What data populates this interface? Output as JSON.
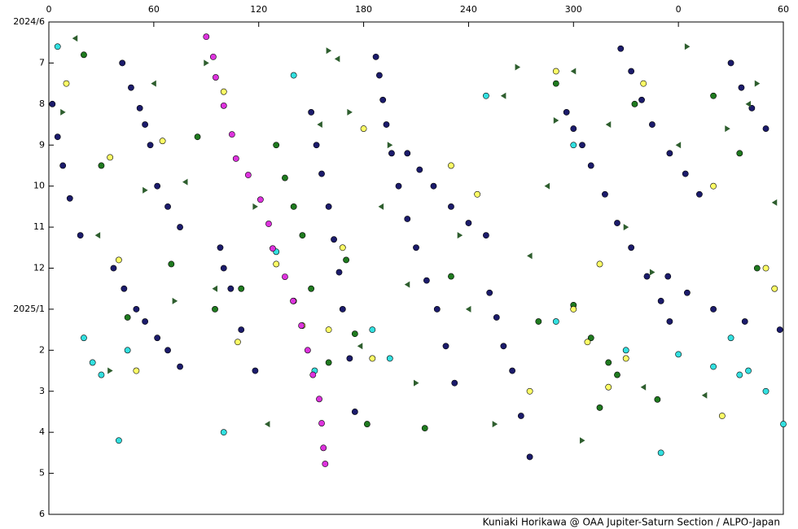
{
  "chart_data": {
    "type": "scatter",
    "credit": "Kuniaki Horikawa @ OAA Jupiter-Saturn Section / ALPO-Japan",
    "xlim": [
      0,
      420
    ],
    "xticks": [
      0,
      60,
      120,
      180,
      240,
      300,
      {
        "value": 360,
        "label": "0"
      },
      {
        "value": 420,
        "label": "60"
      }
    ],
    "ylim": [
      0,
      12
    ],
    "y_inverted": true,
    "yticks": [
      {
        "value": 0,
        "label": "2024/6"
      },
      {
        "value": 1,
        "label": "7"
      },
      {
        "value": 2,
        "label": "8"
      },
      {
        "value": 3,
        "label": "9"
      },
      {
        "value": 4,
        "label": "10"
      },
      {
        "value": 5,
        "label": "11"
      },
      {
        "value": 6,
        "label": "12"
      },
      {
        "value": 7,
        "label": "2025/1"
      },
      {
        "value": 8,
        "label": "2"
      },
      {
        "value": 9,
        "label": "3"
      },
      {
        "value": 10,
        "label": "4"
      },
      {
        "value": 11,
        "label": "5"
      },
      {
        "value": 12,
        "label": "6"
      }
    ],
    "series": [
      {
        "color": "#1b1b6b",
        "marker": "circle",
        "x": [
          187,
          189,
          191,
          193,
          196,
          200,
          205,
          210,
          216,
          222,
          227,
          232,
          296,
          300,
          305,
          310,
          318,
          325,
          333,
          342,
          350,
          355,
          354,
          365,
          380,
          398,
          418,
          37,
          43,
          50,
          55,
          62,
          68,
          75,
          42,
          47,
          52,
          55,
          58,
          62,
          68,
          75,
          205,
          212,
          220,
          230,
          240,
          250,
          150,
          153,
          156,
          160,
          163,
          166,
          168,
          172,
          175,
          252,
          256,
          260,
          265,
          270,
          275,
          327,
          333,
          339,
          345,
          355,
          364,
          372,
          390,
          396,
          402,
          410,
          2,
          5,
          8,
          12,
          18,
          98,
          100,
          104,
          110,
          118
        ],
        "y": [
          0.85,
          1.3,
          1.9,
          2.5,
          3.2,
          4.0,
          4.8,
          5.5,
          6.3,
          7.0,
          7.9,
          8.8,
          2.2,
          2.6,
          3.0,
          3.5,
          4.2,
          4.9,
          5.5,
          6.2,
          6.8,
          7.3,
          6.2,
          6.6,
          7.0,
          7.3,
          7.5,
          6.0,
          6.5,
          7.0,
          7.3,
          7.7,
          8.0,
          8.4,
          1.0,
          1.6,
          2.1,
          2.5,
          3.0,
          4.0,
          4.5,
          5.0,
          3.2,
          3.6,
          4.0,
          4.5,
          4.9,
          5.2,
          2.2,
          3.0,
          3.7,
          4.5,
          5.3,
          6.1,
          7.0,
          8.2,
          9.5,
          6.6,
          7.2,
          7.9,
          8.5,
          9.6,
          10.6,
          0.65,
          1.2,
          1.9,
          2.5,
          3.2,
          3.7,
          4.2,
          1.0,
          1.6,
          2.1,
          2.6,
          2.0,
          2.8,
          3.5,
          4.3,
          5.2,
          5.5,
          6.0,
          6.5,
          7.5,
          8.5
        ]
      },
      {
        "color": "#1f7a1f",
        "marker": "circle",
        "x": [
          20,
          30,
          45,
          85,
          110,
          130,
          135,
          140,
          145,
          170,
          175,
          182,
          215,
          230,
          290,
          300,
          310,
          320,
          325,
          335,
          348,
          380,
          395,
          405,
          70,
          95,
          150,
          160,
          280,
          315
        ],
        "y": [
          0.8,
          3.5,
          7.2,
          2.8,
          6.5,
          3.0,
          3.8,
          4.5,
          5.2,
          5.8,
          7.6,
          9.8,
          9.9,
          6.2,
          1.5,
          6.9,
          7.7,
          8.3,
          8.6,
          2.0,
          9.2,
          1.8,
          3.2,
          6.0,
          5.9,
          7.0,
          6.5,
          8.3,
          7.3,
          9.4
        ]
      },
      {
        "color": "#ffff66",
        "marker": "circle",
        "x": [
          10,
          35,
          40,
          50,
          65,
          100,
          108,
          130,
          140,
          145,
          160,
          168,
          180,
          185,
          230,
          245,
          275,
          290,
          300,
          308,
          315,
          320,
          330,
          340,
          380,
          385,
          410,
          415
        ],
        "y": [
          1.5,
          3.3,
          5.8,
          8.5,
          2.9,
          1.7,
          7.8,
          5.9,
          6.8,
          7.4,
          7.5,
          5.5,
          2.6,
          8.2,
          3.5,
          4.2,
          9.0,
          1.2,
          7.0,
          7.8,
          5.9,
          8.9,
          8.2,
          1.5,
          4.0,
          9.6,
          6.0,
          6.5
        ]
      },
      {
        "color": "#33e0e0",
        "marker": "circle",
        "x": [
          5,
          20,
          25,
          30,
          40,
          45,
          100,
          130,
          140,
          152,
          185,
          195,
          250,
          290,
          300,
          330,
          350,
          360,
          380,
          390,
          395,
          400,
          410,
          420
        ],
        "y": [
          0.6,
          7.7,
          8.3,
          8.6,
          10.2,
          8.0,
          10.0,
          5.6,
          1.3,
          8.5,
          7.5,
          8.2,
          1.8,
          7.3,
          3.0,
          8.0,
          10.5,
          8.1,
          8.4,
          7.7,
          8.6,
          8.5,
          9.0,
          9.8
        ]
      },
      {
        "color": "#dd33dd",
        "marker": "circle",
        "x": [
          90,
          94,
          95.4,
          100,
          104.7,
          107,
          114,
          121,
          125.7,
          128,
          135,
          139.7,
          144.4,
          148,
          151,
          154.6,
          156,
          157,
          158
        ],
        "y": [
          0.36,
          0.85,
          1.35,
          2.04,
          2.74,
          3.33,
          3.73,
          4.33,
          4.92,
          5.52,
          6.21,
          6.8,
          7.4,
          8.0,
          8.6,
          9.19,
          9.78,
          10.38,
          10.77
        ]
      },
      {
        "color": "#2e5e2e",
        "marker": "triangle-left",
        "x": [
          15,
          28,
          60,
          78,
          95,
          125,
          155,
          165,
          178,
          190,
          205,
          240,
          260,
          275,
          285,
          300,
          320,
          340,
          360,
          375,
          400,
          415
        ],
        "y": [
          0.4,
          5.2,
          1.5,
          3.9,
          6.5,
          9.8,
          2.5,
          0.9,
          7.9,
          4.5,
          6.4,
          7.0,
          1.8,
          5.7,
          4.0,
          1.2,
          2.5,
          8.9,
          3.0,
          9.1,
          2.0,
          4.4
        ]
      },
      {
        "color": "#2e5e2e",
        "marker": "triangle-right",
        "x": [
          8,
          35,
          55,
          72,
          90,
          118,
          160,
          172,
          195,
          210,
          235,
          255,
          268,
          290,
          305,
          330,
          345,
          365,
          388,
          405
        ],
        "y": [
          2.2,
          8.5,
          4.1,
          6.8,
          1.0,
          4.5,
          0.7,
          2.2,
          3.0,
          8.8,
          5.2,
          9.8,
          1.1,
          2.4,
          10.2,
          5.0,
          6.1,
          0.6,
          2.6,
          1.5
        ]
      }
    ]
  }
}
